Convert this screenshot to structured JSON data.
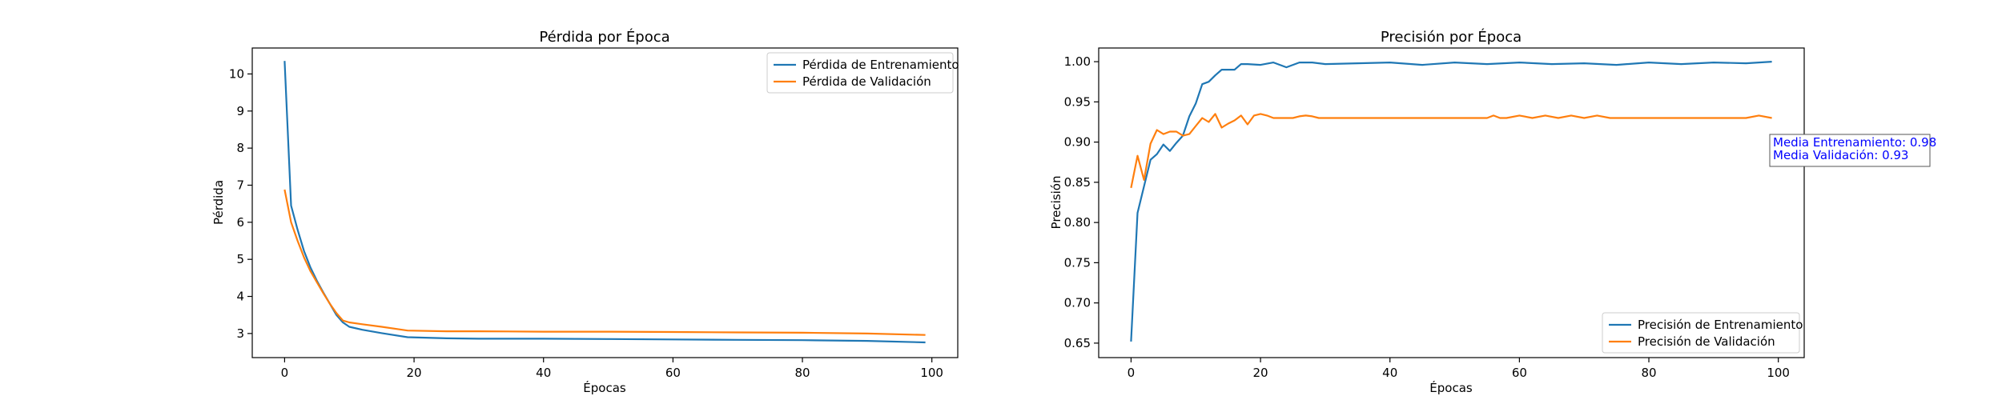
{
  "chart_data": [
    {
      "type": "line",
      "title": "Pérdida por Época",
      "xlabel": "Épocas",
      "ylabel": "Pérdida",
      "xlim": [
        -5,
        104
      ],
      "ylim": [
        2.35,
        10.7
      ],
      "xticks": [
        0,
        20,
        40,
        60,
        80,
        100
      ],
      "yticks": [
        3,
        4,
        5,
        6,
        7,
        8,
        9,
        10
      ],
      "legend_position": "upper right",
      "grid": false,
      "series": [
        {
          "name": "Pérdida de Entrenamiento",
          "color": "#1f77b4",
          "x": [
            0,
            1,
            2,
            3,
            4,
            5,
            6,
            7,
            8,
            9,
            10,
            12,
            15,
            19,
            25,
            30,
            40,
            50,
            60,
            70,
            80,
            90,
            99
          ],
          "y": [
            10.35,
            6.45,
            5.8,
            5.22,
            4.78,
            4.42,
            4.1,
            3.8,
            3.5,
            3.3,
            3.18,
            3.1,
            3.01,
            2.9,
            2.87,
            2.86,
            2.86,
            2.85,
            2.84,
            2.83,
            2.82,
            2.8,
            2.76
          ]
        },
        {
          "name": "Pérdida de Validación",
          "color": "#ff7f0e",
          "x": [
            0,
            1,
            2,
            3,
            4,
            5,
            6,
            7,
            8,
            9,
            10,
            12,
            15,
            19,
            25,
            30,
            40,
            50,
            60,
            70,
            80,
            90,
            99
          ],
          "y": [
            6.88,
            6.0,
            5.5,
            5.05,
            4.68,
            4.38,
            4.08,
            3.8,
            3.55,
            3.35,
            3.3,
            3.25,
            3.18,
            3.08,
            3.06,
            3.06,
            3.05,
            3.05,
            3.04,
            3.03,
            3.02,
            3.0,
            2.96
          ]
        }
      ]
    },
    {
      "type": "line",
      "title": "Precisión por Época",
      "xlabel": "Épocas",
      "ylabel": "Precisión",
      "xlim": [
        -5,
        104
      ],
      "ylim": [
        0.632,
        1.017
      ],
      "xticks": [
        0,
        20,
        40,
        60,
        80,
        100
      ],
      "yticks": [
        0.65,
        0.7,
        0.75,
        0.8,
        0.85,
        0.9,
        0.95,
        1.0
      ],
      "legend_position": "lower right",
      "grid": false,
      "annotation": {
        "lines": [
          "Media Entrenamiento: 0.98",
          "Media Validación: 0.93"
        ],
        "color": "#0000ff"
      },
      "series": [
        {
          "name": "Precisión de Entrenamiento",
          "color": "#1f77b4",
          "x": [
            0,
            1,
            2,
            3,
            4,
            5,
            6,
            7,
            8,
            9,
            10,
            11,
            12,
            13,
            14,
            15,
            16,
            17,
            18,
            20,
            22,
            24,
            26,
            28,
            30,
            35,
            40,
            45,
            50,
            55,
            60,
            65,
            70,
            75,
            80,
            85,
            90,
            95,
            99
          ],
          "y": [
            0.652,
            0.812,
            0.845,
            0.878,
            0.885,
            0.897,
            0.889,
            0.899,
            0.908,
            0.932,
            0.948,
            0.972,
            0.975,
            0.983,
            0.99,
            0.99,
            0.99,
            0.997,
            0.997,
            0.996,
            0.999,
            0.993,
            0.999,
            0.999,
            0.997,
            0.998,
            0.999,
            0.996,
            0.999,
            0.997,
            0.999,
            0.997,
            0.998,
            0.996,
            0.999,
            0.997,
            0.999,
            0.998,
            1.0
          ]
        },
        {
          "name": "Precisión de Validación",
          "color": "#ff7f0e",
          "x": [
            0,
            1,
            2,
            3,
            4,
            5,
            6,
            7,
            8,
            9,
            10,
            11,
            12,
            13,
            14,
            15,
            16,
            17,
            18,
            19,
            20,
            21,
            22,
            23,
            24,
            25,
            26,
            27,
            28,
            29,
            30,
            35,
            40,
            45,
            50,
            55,
            56,
            57,
            58,
            60,
            62,
            64,
            66,
            68,
            70,
            72,
            74,
            76,
            80,
            85,
            90,
            95,
            97,
            99
          ],
          "y": [
            0.843,
            0.883,
            0.853,
            0.898,
            0.915,
            0.91,
            0.913,
            0.913,
            0.908,
            0.91,
            0.92,
            0.93,
            0.925,
            0.935,
            0.918,
            0.923,
            0.927,
            0.933,
            0.922,
            0.933,
            0.935,
            0.933,
            0.93,
            0.93,
            0.93,
            0.93,
            0.932,
            0.933,
            0.932,
            0.93,
            0.93,
            0.93,
            0.93,
            0.93,
            0.93,
            0.93,
            0.933,
            0.93,
            0.93,
            0.933,
            0.93,
            0.933,
            0.93,
            0.933,
            0.93,
            0.933,
            0.93,
            0.93,
            0.93,
            0.93,
            0.93,
            0.93,
            0.933,
            0.93
          ]
        }
      ]
    }
  ]
}
